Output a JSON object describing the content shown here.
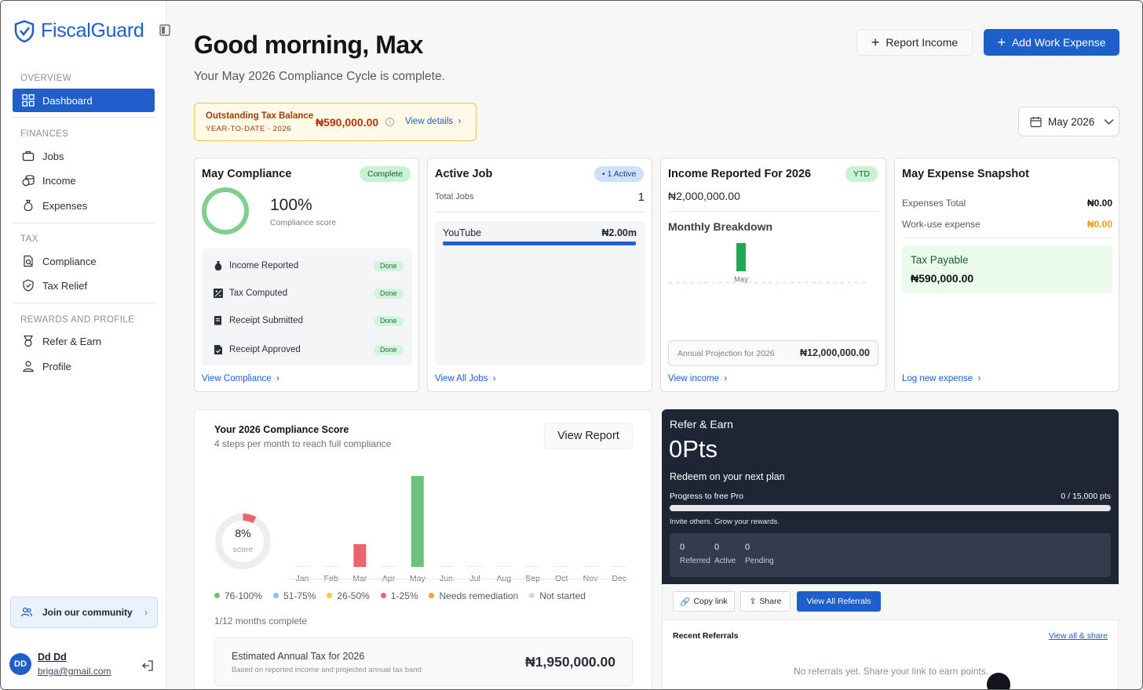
{
  "app": {
    "name": "FiscalGuard",
    "brand_color": "#1f5fcb"
  },
  "sidebar": {
    "sections": [
      {
        "title": "OVERVIEW",
        "items": [
          {
            "label": "Dashboard",
            "icon": "grid-icon",
            "active": true
          }
        ]
      },
      {
        "title": "FINANCES",
        "items": [
          {
            "label": "Jobs",
            "icon": "briefcase-icon"
          },
          {
            "label": "Income",
            "icon": "coins-icon"
          },
          {
            "label": "Expenses",
            "icon": "money-bag-icon"
          }
        ]
      },
      {
        "title": "TAX",
        "items": [
          {
            "label": "Compliance",
            "icon": "doc-search-icon"
          },
          {
            "label": "Tax Relief",
            "icon": "shield-check-icon"
          }
        ]
      },
      {
        "title": "REWARDS AND PROFILE",
        "items": [
          {
            "label": "Refer & Earn",
            "icon": "medal-icon"
          },
          {
            "label": "Profile",
            "icon": "user-icon"
          }
        ]
      }
    ],
    "community": "Join our community",
    "user": {
      "initials": "DD",
      "name": "Dd Dd",
      "email": "briga@gmail.com"
    }
  },
  "header": {
    "greeting": "Good morning, Max",
    "subtitle": "Your May 2026 Compliance Cycle is complete.",
    "report_income": "Report Income",
    "add_expense": "Add Work Expense"
  },
  "tax_balance": {
    "label": "Outstanding Tax Balance",
    "sub": "YEAR-TO-DATE · 2026",
    "amount": "₦590,000.00",
    "link": "View details"
  },
  "month_selector": "May 2026",
  "compliance_card": {
    "title": "May Compliance",
    "badge": "Complete",
    "score": "100%",
    "score_label": "Compliance score",
    "steps": [
      {
        "label": "Income Reported",
        "status": "Done"
      },
      {
        "label": "Tax Computed",
        "status": "Done"
      },
      {
        "label": "Receipt Submitted",
        "status": "Done"
      },
      {
        "label": "Receipt Approved",
        "status": "Done"
      }
    ],
    "link": "View Compliance"
  },
  "active_job_card": {
    "title": "Active Job",
    "badge": "• 1 Active",
    "total_label": "Total Jobs",
    "total": "1",
    "job_name": "YouTube",
    "job_amount": "₦2.00m",
    "link": "View All Jobs"
  },
  "income_card": {
    "title": "Income Reported For 2026",
    "badge": "YTD",
    "amount": "₦2,000,000.00",
    "breakdown_title": "Monthly Breakdown",
    "breakdown_month": "May",
    "projection_label": "Annual Projection for 2026",
    "projection": "₦12,000,000.00",
    "link": "View income"
  },
  "expense_card": {
    "title": "May Expense Snapshot",
    "total_label": "Expenses Total",
    "total": "₦0.00",
    "work_label": "Work-use expense",
    "work": "₦0.00",
    "tax_label": "Tax Payable",
    "tax": "₦590,000.00",
    "link": "Log new expense"
  },
  "score_card": {
    "title": "Your 2026 Compliance Score",
    "subtitle": "4 steps per month to reach full compliance",
    "button": "View Report",
    "score": "8%",
    "score_label": "score",
    "legend": [
      {
        "label": "76-100%",
        "color": "#6cc27c"
      },
      {
        "label": "51-75%",
        "color": "#7cc4f0"
      },
      {
        "label": "26-50%",
        "color": "#f2cd43"
      },
      {
        "label": "1-25%",
        "color": "#e8666b"
      },
      {
        "label": "Needs remediation",
        "color": "#f0a23a"
      },
      {
        "label": "Not started",
        "color": "#d5d8dd"
      }
    ],
    "months_complete": "1/12 months complete",
    "estimate_label": "Estimated Annual Tax for 2026",
    "estimate_sub": "Based on reported income and projected annual tax band",
    "estimate": "₦1,950,000.00"
  },
  "chart_data": {
    "type": "bar",
    "categories": [
      "Jan",
      "Feb",
      "Mar",
      "Apr",
      "May",
      "Jun",
      "Jul",
      "Aug",
      "Sep",
      "Oct",
      "Nov",
      "Dec"
    ],
    "values": [
      0,
      0,
      25,
      0,
      100,
      0,
      0,
      0,
      0,
      0,
      0,
      0
    ],
    "colors": [
      "#d5d8dd",
      "#d5d8dd",
      "#e8666b",
      "#d5d8dd",
      "#6cc27c",
      "#d5d8dd",
      "#d5d8dd",
      "#d5d8dd",
      "#d5d8dd",
      "#d5d8dd",
      "#d5d8dd",
      "#d5d8dd"
    ],
    "ylim": [
      0,
      100
    ],
    "title": "",
    "xlabel": "",
    "ylabel": ""
  },
  "refer": {
    "title": "Refer & Earn",
    "points": "0Pts",
    "redeem": "Redeem on your next plan",
    "progress_label": "Progress to free Pro",
    "progress_value": "0 / 15,000 pts",
    "progress_fraction": 0,
    "invite": "Invite others. Grow your rewards.",
    "stats": [
      {
        "value": "0",
        "label": "Referred"
      },
      {
        "value": "0",
        "label": "Active"
      },
      {
        "value": "0",
        "label": "Pending"
      }
    ],
    "copy": "Copy link",
    "share": "Share",
    "view_all": "View All Referrals",
    "recent": "Recent Referrals",
    "view_all_share": "View all & share",
    "empty": "No referrals yet. Share your link to earn points."
  }
}
